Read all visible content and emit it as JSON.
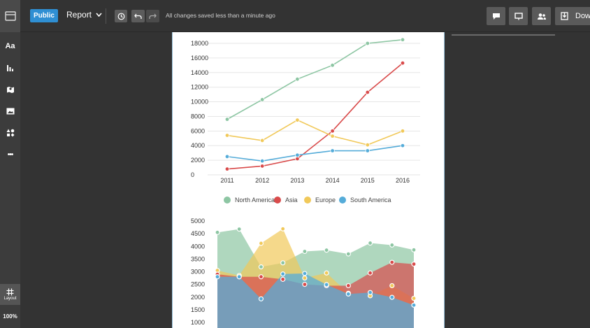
{
  "topbar": {
    "public_label": "Public",
    "report_label": "Report",
    "saved_status": "All changes saved less than a minute ago",
    "download_label": "Down",
    "icons": [
      "history-icon",
      "undo-icon",
      "redo-icon",
      "comment-icon",
      "present-icon",
      "share-icon",
      "download-icon"
    ]
  },
  "sidebar": {
    "items": [
      {
        "name": "text",
        "label": "Aa"
      },
      {
        "name": "charts",
        "icon": "bar-chart-icon"
      },
      {
        "name": "maps",
        "icon": "map-icon"
      },
      {
        "name": "images",
        "icon": "image-icon"
      },
      {
        "name": "shapes",
        "icon": "shapes-icon"
      },
      {
        "name": "more",
        "label": "•••"
      }
    ],
    "layout_label": "Layout",
    "zoom": "100%"
  },
  "colors": {
    "north_america": "#8dc6a3",
    "asia": "#d94b4b",
    "europe": "#f1c95a",
    "south_america": "#55acd9",
    "public_button": "#2f8fd3"
  },
  "chart_data": [
    {
      "type": "line",
      "x": [
        "2011",
        "2012",
        "2013",
        "2014",
        "2015",
        "2016"
      ],
      "ylim": [
        0,
        18000
      ],
      "yticks": [
        "18000",
        "16000",
        "14000",
        "12000",
        "10000",
        "8000",
        "6000",
        "4000",
        "2000",
        "0"
      ],
      "series": [
        {
          "name": "North America",
          "values": [
            7600,
            10300,
            13100,
            15000,
            18000,
            18500
          ]
        },
        {
          "name": "Asia",
          "values": [
            800,
            1200,
            2200,
            6000,
            11300,
            15300
          ]
        },
        {
          "name": "Europe",
          "values": [
            5400,
            4700,
            7500,
            5300,
            4100,
            6000
          ]
        },
        {
          "name": "South America",
          "values": [
            2500,
            1900,
            2700,
            3300,
            3300,
            4000
          ]
        }
      ],
      "legend_position": "bottom",
      "grid": true
    },
    {
      "type": "area",
      "x_count": 10,
      "ylim": [
        1000,
        5000
      ],
      "yticks": [
        "5000",
        "4500",
        "4000",
        "3500",
        "3000",
        "2500",
        "2000",
        "1500",
        "1000"
      ],
      "series": [
        {
          "name": "North America",
          "values": [
            4550,
            4680,
            3190,
            3350,
            3800,
            3850,
            3700,
            4130,
            4050,
            3860
          ]
        },
        {
          "name": "Asia",
          "values": [
            2900,
            2800,
            2800,
            2700,
            2500,
            2450,
            2450,
            2950,
            3370,
            3300
          ]
        },
        {
          "name": "Europe",
          "values": [
            3050,
            2850,
            4120,
            4690,
            2750,
            2950,
            2150,
            2050,
            2450,
            1950
          ]
        },
        {
          "name": "South America",
          "values": [
            2800,
            2800,
            1930,
            2910,
            2930,
            2490,
            2120,
            2180,
            1990,
            1680
          ]
        }
      ]
    }
  ]
}
